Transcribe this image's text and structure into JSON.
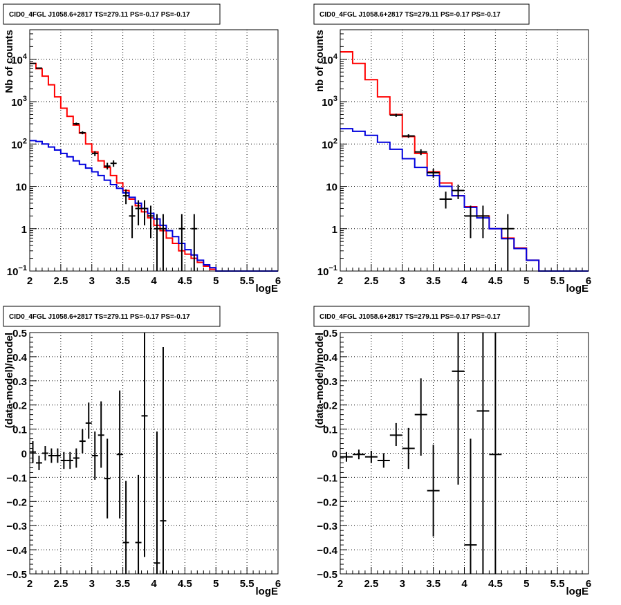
{
  "chart_data": [
    {
      "type": "line",
      "panel": "top-left",
      "title": "CID0_4FGL J1058.6+2817 TS=279.11 PS=-0.17 PS=-0.17",
      "xlabel": "logE",
      "ylabel": "Nb of counts",
      "xlim": [
        2,
        6
      ],
      "ylim": [
        0.1,
        50000
      ],
      "yscale": "log",
      "grid": true,
      "x_ticks": [
        "2",
        "2.5",
        "3",
        "3.5",
        "4",
        "4.5",
        "5",
        "5.5",
        "6"
      ],
      "y_ticks": [
        {
          "v": 0.1,
          "base": "10",
          "exp": "−1"
        },
        {
          "v": 1,
          "label": "1"
        },
        {
          "v": 10,
          "label": "10"
        },
        {
          "v": 100,
          "base": "10",
          "exp": "2"
        },
        {
          "v": 1000,
          "base": "10",
          "exp": "3"
        },
        {
          "v": 10000,
          "base": "10",
          "exp": "4"
        }
      ],
      "series": [
        {
          "type": "step",
          "color": "#ff0000",
          "bin_edges": [
            2,
            2.1,
            2.2,
            2.3,
            2.4,
            2.5,
            2.6,
            2.7,
            2.8,
            2.9,
            3.0,
            3.1,
            3.2,
            3.3,
            3.4,
            3.5,
            3.6,
            3.7,
            3.8,
            3.9,
            4.0,
            4.1,
            4.2,
            4.3,
            4.4,
            4.5,
            4.6,
            4.7,
            4.8,
            4.9,
            5.0,
            5.1,
            5.2,
            6.0
          ],
          "values": [
            8000,
            6000,
            4000,
            2500,
            1300,
            700,
            450,
            280,
            180,
            100,
            65,
            40,
            28,
            18,
            12,
            8,
            5,
            3.5,
            2.5,
            1.8,
            1.2,
            0.9,
            0.6,
            0.45,
            0.3,
            0.25,
            0.2,
            0.16,
            0.13,
            0.11,
            0.1,
            0.1,
            0.1
          ]
        },
        {
          "type": "step",
          "color": "#0000dd",
          "bin_edges": [
            2,
            2.1,
            2.2,
            2.3,
            2.4,
            2.5,
            2.6,
            2.7,
            2.8,
            2.9,
            3.0,
            3.1,
            3.2,
            3.3,
            3.4,
            3.5,
            3.6,
            3.7,
            3.8,
            3.9,
            4.0,
            4.1,
            4.2,
            4.3,
            4.4,
            4.5,
            4.6,
            4.7,
            4.8,
            4.9,
            5.0,
            5.1,
            5.2,
            6.0
          ],
          "values": [
            120,
            115,
            100,
            85,
            72,
            60,
            50,
            40,
            33,
            27,
            22,
            18,
            14,
            11,
            9,
            7,
            5.5,
            4,
            3,
            2.3,
            1.7,
            1.2,
            0.9,
            0.65,
            0.45,
            0.32,
            0.24,
            0.18,
            0.14,
            0.12,
            0.1,
            0.1,
            0.1
          ]
        },
        {
          "type": "points",
          "color": "#000000",
          "points": [
            {
              "x": 2.05,
              "y": 8000,
              "lo": 7800,
              "hi": 8200,
              "xw": 0.05
            },
            {
              "x": 2.15,
              "y": 6200,
              "lo": 6000,
              "hi": 6400,
              "xw": 0.05
            },
            {
              "x": 2.75,
              "y": 300,
              "lo": 280,
              "hi": 320,
              "xw": 0.05
            },
            {
              "x": 2.85,
              "y": 185,
              "lo": 170,
              "hi": 200,
              "xw": 0.05
            },
            {
              "x": 3.05,
              "y": 60,
              "lo": 52,
              "hi": 68,
              "xw": 0.05
            },
            {
              "x": 3.25,
              "y": 30,
              "lo": 25,
              "hi": 36,
              "xw": 0.05
            },
            {
              "x": 3.35,
              "y": 35,
              "lo": 29,
              "hi": 41,
              "xw": 0.05
            },
            {
              "x": 3.55,
              "y": 6,
              "lo": 3.8,
              "hi": 8.5,
              "xw": 0.05
            },
            {
              "x": 3.65,
              "y": 2,
              "lo": 0.6,
              "hi": 3.5,
              "xw": 0.05
            },
            {
              "x": 3.75,
              "y": 3,
              "lo": 1.2,
              "hi": 4.7,
              "xw": 0.05
            },
            {
              "x": 3.85,
              "y": 3,
              "lo": 1.2,
              "hi": 4.7,
              "xw": 0.05
            },
            {
              "x": 3.95,
              "y": 2,
              "lo": 0.6,
              "hi": 3.5,
              "xw": 0.05
            },
            {
              "x": 4.05,
              "y": 1,
              "lo": 0.1,
              "hi": 2.2,
              "xw": 0.05
            },
            {
              "x": 4.15,
              "y": 1,
              "lo": 0.1,
              "hi": 2.2,
              "xw": 0.05
            },
            {
              "x": 4.45,
              "y": 1,
              "lo": 0.1,
              "hi": 2.2,
              "xw": 0.05
            },
            {
              "x": 4.65,
              "y": 1,
              "lo": 0.1,
              "hi": 2.2,
              "xw": 0.05
            }
          ]
        }
      ]
    },
    {
      "type": "line",
      "panel": "top-right",
      "title": "CID0_4FGL J1058.6+2817 TS=279.11 PS=-0.17 PS=-0.17",
      "xlabel": "logE",
      "ylabel": "nb of counts",
      "xlim": [
        2,
        6
      ],
      "ylim": [
        0.1,
        50000
      ],
      "yscale": "log",
      "grid": true,
      "x_ticks": [
        "2",
        "2.5",
        "3",
        "3.5",
        "4",
        "4.5",
        "5",
        "5.5",
        "6"
      ],
      "y_ticks": [
        {
          "v": 0.1,
          "base": "10",
          "exp": "−1"
        },
        {
          "v": 1,
          "label": "1"
        },
        {
          "v": 10,
          "label": "10"
        },
        {
          "v": 100,
          "base": "10",
          "exp": "2"
        },
        {
          "v": 1000,
          "base": "10",
          "exp": "3"
        },
        {
          "v": 10000,
          "base": "10",
          "exp": "4"
        }
      ],
      "series": [
        {
          "type": "step",
          "color": "#ff0000",
          "bin_edges": [
            2,
            2.2,
            2.4,
            2.6,
            2.8,
            3.0,
            3.2,
            3.4,
            3.6,
            3.8,
            4.0,
            4.2,
            4.4,
            4.6,
            4.8,
            5.0,
            5.2,
            6.0
          ],
          "values": [
            15000,
            8000,
            3300,
            1300,
            500,
            150,
            60,
            22,
            12,
            6,
            3.3,
            2,
            1,
            0.6,
            0.35,
            0.18,
            0.1
          ]
        },
        {
          "type": "step",
          "color": "#0000dd",
          "bin_edges": [
            2,
            2.2,
            2.4,
            2.6,
            2.8,
            3.0,
            3.2,
            3.4,
            3.6,
            3.8,
            4.0,
            4.2,
            4.4,
            4.6,
            4.8,
            5.0,
            5.2,
            6.0
          ],
          "values": [
            230,
            200,
            160,
            110,
            75,
            45,
            28,
            18,
            10,
            6,
            3.2,
            1.8,
            1,
            0.58,
            0.34,
            0.18,
            0.1
          ]
        },
        {
          "type": "points",
          "color": "#000000",
          "points": [
            {
              "x": 2.9,
              "y": 480,
              "lo": 440,
              "hi": 520,
              "xw": 0.1
            },
            {
              "x": 3.1,
              "y": 155,
              "lo": 140,
              "hi": 170,
              "xw": 0.1
            },
            {
              "x": 3.3,
              "y": 65,
              "lo": 55,
              "hi": 75,
              "xw": 0.1
            },
            {
              "x": 3.5,
              "y": 21,
              "lo": 16,
              "hi": 26,
              "xw": 0.1
            },
            {
              "x": 3.7,
              "y": 5,
              "lo": 3,
              "hi": 7.5,
              "xw": 0.1
            },
            {
              "x": 3.9,
              "y": 8,
              "lo": 5,
              "hi": 11,
              "xw": 0.1
            },
            {
              "x": 4.1,
              "y": 2,
              "lo": 0.6,
              "hi": 3.5,
              "xw": 0.1
            },
            {
              "x": 4.3,
              "y": 2,
              "lo": 0.6,
              "hi": 3.5,
              "xw": 0.1
            },
            {
              "x": 4.7,
              "y": 1,
              "lo": 0.1,
              "hi": 2.2,
              "xw": 0.1
            }
          ]
        }
      ]
    },
    {
      "type": "scatter",
      "panel": "bottom-left",
      "title": "CID0_4FGL J1058.6+2817 TS=279.11 PS=-0.17 PS=-0.17",
      "xlabel": "logE",
      "ylabel": "(data-model)/model",
      "xlim": [
        2,
        6
      ],
      "ylim": [
        -0.5,
        0.5
      ],
      "yscale": "linear",
      "grid": true,
      "x_ticks": [
        "2",
        "2.5",
        "3",
        "3.5",
        "4",
        "4.5",
        "5",
        "5.5",
        "6"
      ],
      "y_ticks": [
        {
          "v": -0.5,
          "label": "−0.5"
        },
        {
          "v": -0.4,
          "label": "−0.4"
        },
        {
          "v": -0.3,
          "label": "−0.3"
        },
        {
          "v": -0.2,
          "label": "−0.2"
        },
        {
          "v": -0.1,
          "label": "−0.1"
        },
        {
          "v": 0,
          "label": "0"
        },
        {
          "v": 0.1,
          "label": "0.1"
        },
        {
          "v": 0.2,
          "label": "0.2"
        },
        {
          "v": 0.3,
          "label": "0.3"
        },
        {
          "v": 0.4,
          "label": "0.4"
        },
        {
          "v": 0.5,
          "label": "0.5"
        }
      ],
      "series": [
        {
          "type": "points",
          "color": "#000000",
          "points": [
            {
              "x": 2.05,
              "y": 0.005,
              "lo": -0.04,
              "hi": 0.05,
              "xw": 0.05
            },
            {
              "x": 2.15,
              "y": -0.04,
              "lo": -0.07,
              "hi": -0.01,
              "xw": 0.05
            },
            {
              "x": 2.25,
              "y": 0.0,
              "lo": -0.03,
              "hi": 0.03,
              "xw": 0.05
            },
            {
              "x": 2.35,
              "y": -0.01,
              "lo": -0.04,
              "hi": 0.02,
              "xw": 0.05
            },
            {
              "x": 2.45,
              "y": -0.01,
              "lo": -0.04,
              "hi": 0.02,
              "xw": 0.05
            },
            {
              "x": 2.55,
              "y": -0.03,
              "lo": -0.065,
              "hi": 0.005,
              "xw": 0.05
            },
            {
              "x": 2.65,
              "y": -0.03,
              "lo": -0.065,
              "hi": 0.005,
              "xw": 0.05
            },
            {
              "x": 2.75,
              "y": -0.02,
              "lo": -0.06,
              "hi": 0.02,
              "xw": 0.05
            },
            {
              "x": 2.85,
              "y": 0.05,
              "lo": 0.0,
              "hi": 0.1,
              "xw": 0.05
            },
            {
              "x": 2.95,
              "y": 0.125,
              "lo": 0.06,
              "hi": 0.21,
              "xw": 0.05
            },
            {
              "x": 3.05,
              "y": -0.01,
              "lo": -0.11,
              "hi": 0.09,
              "xw": 0.05
            },
            {
              "x": 3.15,
              "y": 0.075,
              "lo": -0.06,
              "hi": 0.215,
              "xw": 0.05
            },
            {
              "x": 3.25,
              "y": -0.105,
              "lo": -0.27,
              "hi": 0.06,
              "xw": 0.05
            },
            {
              "x": 3.45,
              "y": -0.005,
              "lo": -0.27,
              "hi": 0.26,
              "xw": 0.05
            },
            {
              "x": 3.55,
              "y": -0.37,
              "lo": -0.5,
              "hi": -0.115,
              "xw": 0.05
            },
            {
              "x": 3.75,
              "y": -0.37,
              "lo": -0.5,
              "hi": -0.09,
              "xw": 0.05
            },
            {
              "x": 3.85,
              "y": 0.155,
              "lo": -0.43,
              "hi": 0.5,
              "xw": 0.05
            },
            {
              "x": 4.05,
              "y": -0.455,
              "lo": -0.5,
              "hi": 0.09,
              "xw": 0.05
            },
            {
              "x": 4.15,
              "y": -0.28,
              "lo": -0.5,
              "hi": 0.44,
              "xw": 0.05
            }
          ]
        }
      ]
    },
    {
      "type": "scatter",
      "panel": "bottom-right",
      "title": "CID0_4FGL J1058.6+2817 TS=279.11 PS=-0.17 PS=-0.17",
      "xlabel": "logE",
      "ylabel": "(data-model)/model",
      "xlim": [
        2,
        6
      ],
      "ylim": [
        -0.5,
        0.5
      ],
      "yscale": "linear",
      "grid": true,
      "x_ticks": [
        "2",
        "2.5",
        "3",
        "3.5",
        "4",
        "4.5",
        "5",
        "5.5",
        "6"
      ],
      "y_ticks": [
        {
          "v": -0.5,
          "label": "−0.5"
        },
        {
          "v": -0.4,
          "label": "−0.4"
        },
        {
          "v": -0.3,
          "label": "−0.3"
        },
        {
          "v": -0.2,
          "label": "−0.2"
        },
        {
          "v": -0.1,
          "label": "−0.1"
        },
        {
          "v": 0,
          "label": "0"
        },
        {
          "v": 0.1,
          "label": "0.1"
        },
        {
          "v": 0.2,
          "label": "0.2"
        },
        {
          "v": 0.3,
          "label": "0.3"
        },
        {
          "v": 0.4,
          "label": "0.4"
        },
        {
          "v": 0.5,
          "label": "0.5"
        }
      ],
      "series": [
        {
          "type": "points",
          "color": "#000000",
          "points": [
            {
              "x": 2.1,
              "y": -0.015,
              "lo": -0.035,
              "hi": 0.005,
              "xw": 0.1
            },
            {
              "x": 2.3,
              "y": -0.005,
              "lo": -0.025,
              "hi": 0.015,
              "xw": 0.1
            },
            {
              "x": 2.5,
              "y": -0.015,
              "lo": -0.04,
              "hi": 0.01,
              "xw": 0.1
            },
            {
              "x": 2.7,
              "y": -0.03,
              "lo": -0.06,
              "hi": 0.0,
              "xw": 0.1
            },
            {
              "x": 2.9,
              "y": 0.075,
              "lo": 0.03,
              "hi": 0.125,
              "xw": 0.1
            },
            {
              "x": 3.1,
              "y": 0.02,
              "lo": -0.065,
              "hi": 0.105,
              "xw": 0.1
            },
            {
              "x": 3.3,
              "y": 0.16,
              "lo": -0.01,
              "hi": 0.31,
              "xw": 0.1
            },
            {
              "x": 3.5,
              "y": -0.155,
              "lo": -0.345,
              "hi": 0.035,
              "xw": 0.1
            },
            {
              "x": 3.9,
              "y": 0.34,
              "lo": -0.13,
              "hi": 0.5,
              "xw": 0.1
            },
            {
              "x": 4.1,
              "y": -0.38,
              "lo": -0.5,
              "hi": 0.06,
              "xw": 0.1
            },
            {
              "x": 4.3,
              "y": 0.175,
              "lo": -0.5,
              "hi": 0.5,
              "xw": 0.1
            },
            {
              "x": 4.5,
              "y": -0.005,
              "lo": -0.5,
              "hi": 0.5,
              "xw": 0.1
            }
          ]
        }
      ]
    }
  ]
}
